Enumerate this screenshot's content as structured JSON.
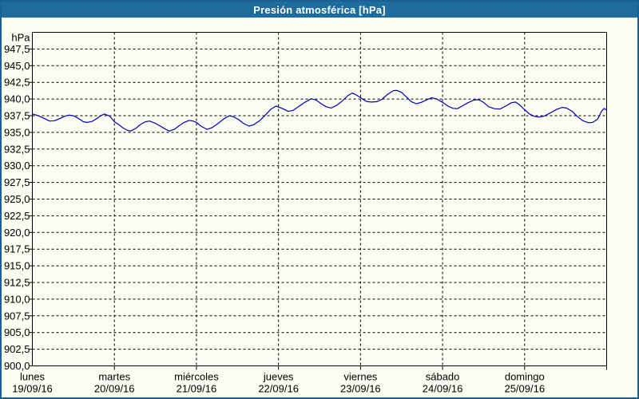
{
  "window": {
    "title": "Presión atmosférica [hPa]"
  },
  "colors": {
    "frame_border": "#1b5f93",
    "titlebar_bg": "#1e6b9e",
    "title_text": "#ffffff",
    "content_bg": "#fbfdf2",
    "axis": "#000000",
    "grid": "#000000",
    "text": "#000000",
    "line": "#0000b3"
  },
  "chart_data": {
    "type": "line",
    "title": "Presión atmosférica [hPa]",
    "ylabel": "hPa",
    "ylim": [
      900,
      950
    ],
    "ytick_step": 2.5,
    "ytick_values": [
      900.0,
      902.5,
      905.0,
      907.5,
      910.0,
      912.5,
      915.0,
      917.5,
      920.0,
      922.5,
      925.0,
      927.5,
      930.0,
      932.5,
      935.0,
      937.5,
      940.0,
      942.5,
      945.0,
      947.5
    ],
    "ytick_labels": [
      "900,0",
      "902,5",
      "905,0",
      "907,5",
      "910,0",
      "912,5",
      "915,0",
      "917,5",
      "920,0",
      "922,5",
      "925,0",
      "927,5",
      "930,0",
      "932,5",
      "935,0",
      "937,5",
      "940,0",
      "942,5",
      "945,0",
      "947,5"
    ],
    "grid": "dashed",
    "legend": "none",
    "x_range_days": [
      0,
      7
    ],
    "x_days": [
      {
        "label": "lunes",
        "date": "19/09/16"
      },
      {
        "label": "martes",
        "date": "20/09/16"
      },
      {
        "label": "miércoles",
        "date": "21/09/16"
      },
      {
        "label": "jueves",
        "date": "22/09/16"
      },
      {
        "label": "viernes",
        "date": "23/09/16"
      },
      {
        "label": "sábado",
        "date": "24/09/16"
      },
      {
        "label": "domingo",
        "date": "25/09/16"
      }
    ],
    "series": [
      {
        "name": "Presión atmosférica",
        "unit": "hPa",
        "x_days": [
          0.0,
          0.05,
          0.1,
          0.16,
          0.21,
          0.27,
          0.33,
          0.4,
          0.45,
          0.51,
          0.56,
          0.62,
          0.67,
          0.73,
          0.79,
          0.84,
          0.88,
          0.94,
          1.0,
          1.05,
          1.1,
          1.16,
          1.2,
          1.26,
          1.32,
          1.38,
          1.43,
          1.5,
          1.56,
          1.62,
          1.67,
          1.73,
          1.79,
          1.85,
          1.91,
          1.96,
          2.0,
          2.06,
          2.13,
          2.19,
          2.26,
          2.33,
          2.4,
          2.45,
          2.51,
          2.58,
          2.64,
          2.7,
          2.77,
          2.84,
          2.91,
          2.97,
          3.0,
          3.06,
          3.12,
          3.18,
          3.25,
          3.32,
          3.4,
          3.46,
          3.52,
          3.58,
          3.64,
          3.71,
          3.78,
          3.85,
          3.9,
          3.95,
          4.0,
          4.07,
          4.13,
          4.2,
          4.26,
          4.33,
          4.4,
          4.44,
          4.5,
          4.56,
          4.62,
          4.68,
          4.74,
          4.81,
          4.87,
          4.93,
          5.0,
          5.07,
          5.13,
          5.18,
          5.24,
          5.31,
          5.38,
          5.44,
          5.5,
          5.56,
          5.63,
          5.7,
          5.77,
          5.84,
          5.89,
          5.94,
          6.0,
          6.06,
          6.12,
          6.18,
          6.24,
          6.31,
          6.39,
          6.46,
          6.51,
          6.58,
          6.64,
          6.71,
          6.78,
          6.83,
          6.89,
          6.94,
          6.97,
          6.99
        ],
        "values": [
          937.75,
          937.6,
          937.35,
          937.0,
          936.7,
          936.75,
          937.05,
          937.45,
          937.6,
          937.45,
          937.1,
          936.6,
          936.5,
          936.65,
          937.1,
          937.55,
          937.75,
          937.45,
          936.6,
          936.2,
          935.7,
          935.3,
          935.2,
          935.6,
          936.2,
          936.6,
          936.7,
          936.35,
          935.95,
          935.5,
          935.2,
          935.45,
          936.0,
          936.5,
          936.8,
          936.7,
          936.5,
          935.9,
          935.45,
          935.7,
          936.3,
          937.0,
          937.5,
          937.35,
          936.95,
          936.3,
          935.95,
          936.15,
          936.75,
          937.6,
          938.5,
          938.95,
          938.8,
          938.5,
          938.15,
          938.3,
          938.9,
          939.5,
          940.05,
          939.85,
          939.3,
          938.85,
          938.65,
          939.05,
          939.75,
          940.55,
          940.9,
          940.6,
          940.2,
          939.65,
          939.55,
          939.6,
          939.95,
          940.7,
          941.25,
          941.3,
          941.0,
          940.3,
          939.6,
          939.3,
          939.5,
          939.9,
          940.2,
          940.0,
          939.5,
          938.9,
          938.6,
          938.55,
          938.95,
          939.45,
          939.85,
          939.9,
          939.5,
          938.85,
          938.55,
          938.5,
          938.95,
          939.45,
          939.55,
          939.1,
          938.4,
          937.75,
          937.4,
          937.3,
          937.45,
          937.9,
          938.45,
          938.75,
          938.65,
          938.15,
          937.4,
          936.75,
          936.45,
          936.5,
          937.0,
          938.2,
          938.6,
          938.4
        ]
      }
    ]
  }
}
